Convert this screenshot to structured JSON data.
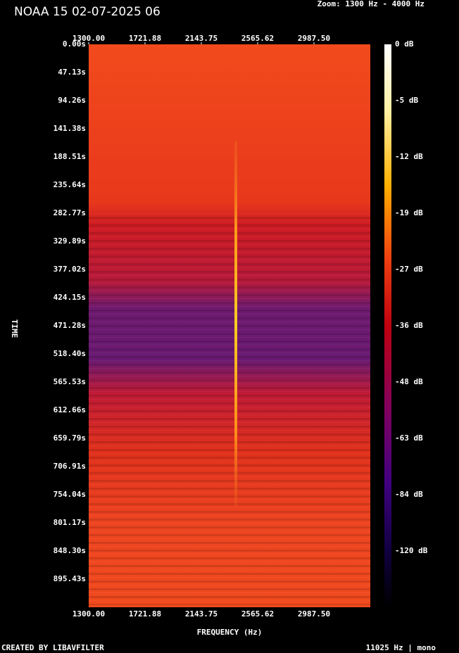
{
  "chart_data": {
    "type": "spectrogram",
    "title": "NOAA 15 02-07-2025 06",
    "zoom_label": "Zoom: 1300 Hz - 4000 Hz",
    "x_label": "FREQUENCY (Hz)",
    "y_label": "TIME",
    "footer_left": "CREATED BY LIBAVFILTER",
    "footer_right": "11025 Hz | mono",
    "xlim": [
      1300,
      3409.375
    ],
    "xticks": [
      {
        "value": 1300,
        "label": "1300.00"
      },
      {
        "value": 1721.875,
        "label": "1721.88"
      },
      {
        "value": 2143.75,
        "label": "2143.75"
      },
      {
        "value": 2565.625,
        "label": "2565.62"
      },
      {
        "value": 2987.5,
        "label": "2987.50"
      }
    ],
    "ylim": [
      0,
      942.6
    ],
    "yticks": [
      {
        "value": 0,
        "label": "0.00s"
      },
      {
        "value": 47.13,
        "label": "47.13s"
      },
      {
        "value": 94.26,
        "label": "94.26s"
      },
      {
        "value": 141.38,
        "label": "141.38s"
      },
      {
        "value": 188.51,
        "label": "188.51s"
      },
      {
        "value": 235.64,
        "label": "235.64s"
      },
      {
        "value": 282.77,
        "label": "282.77s"
      },
      {
        "value": 329.89,
        "label": "329.89s"
      },
      {
        "value": 377.02,
        "label": "377.02s"
      },
      {
        "value": 424.15,
        "label": "424.15s"
      },
      {
        "value": 471.28,
        "label": "471.28s"
      },
      {
        "value": 518.4,
        "label": "518.40s"
      },
      {
        "value": 565.53,
        "label": "565.53s"
      },
      {
        "value": 612.66,
        "label": "612.66s"
      },
      {
        "value": 659.79,
        "label": "659.79s"
      },
      {
        "value": 706.91,
        "label": "706.91s"
      },
      {
        "value": 754.04,
        "label": "754.04s"
      },
      {
        "value": 801.17,
        "label": "801.17s"
      },
      {
        "value": 848.3,
        "label": "848.30s"
      },
      {
        "value": 895.43,
        "label": "895.43s"
      }
    ],
    "colorbar_ticks": [
      {
        "value": 0,
        "label": "0 dB"
      },
      {
        "value": -5,
        "label": "-5 dB"
      },
      {
        "value": -12,
        "label": "-12 dB"
      },
      {
        "value": -19,
        "label": "-19 dB"
      },
      {
        "value": -27,
        "label": "-27 dB"
      },
      {
        "value": -36,
        "label": "-36 dB"
      },
      {
        "value": -48,
        "label": "-48 dB"
      },
      {
        "value": -63,
        "label": "-63 dB"
      },
      {
        "value": -84,
        "label": "-84 dB"
      },
      {
        "value": -120,
        "label": "-120 dB"
      }
    ]
  }
}
